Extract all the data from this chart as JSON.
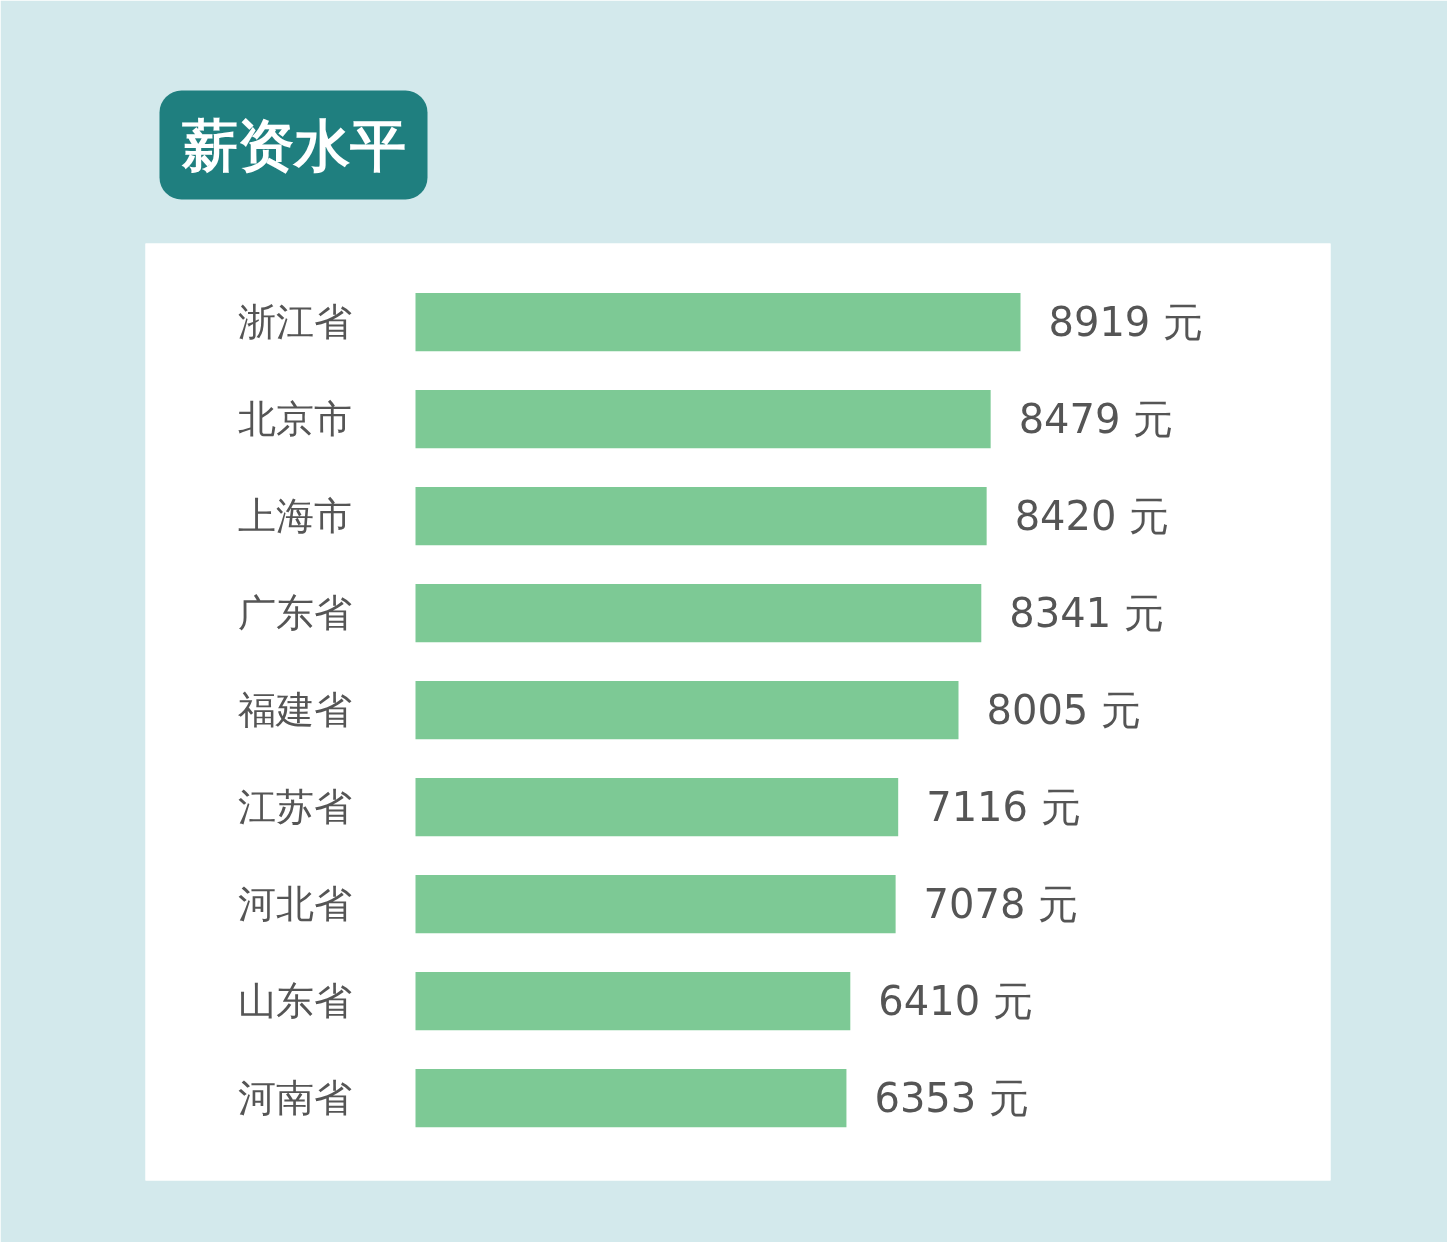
{
  "chart_data": {
    "type": "bar",
    "orientation": "horizontal",
    "title": "薪资水平",
    "categories": [
      "浙江省",
      "北京市",
      "上海市",
      "广东省",
      "福建省",
      "江苏省",
      "河北省",
      "山东省",
      "河南省"
    ],
    "values": [
      8919,
      8479,
      8420,
      8341,
      8005,
      7116,
      7078,
      6410,
      6353
    ],
    "value_labels": [
      "8919 元",
      "8479 元",
      "8420 元",
      "8341 元",
      "8005 元",
      "7116 元",
      "7078 元",
      "6410 元",
      "6353 元"
    ],
    "color": "#7dc995"
  }
}
